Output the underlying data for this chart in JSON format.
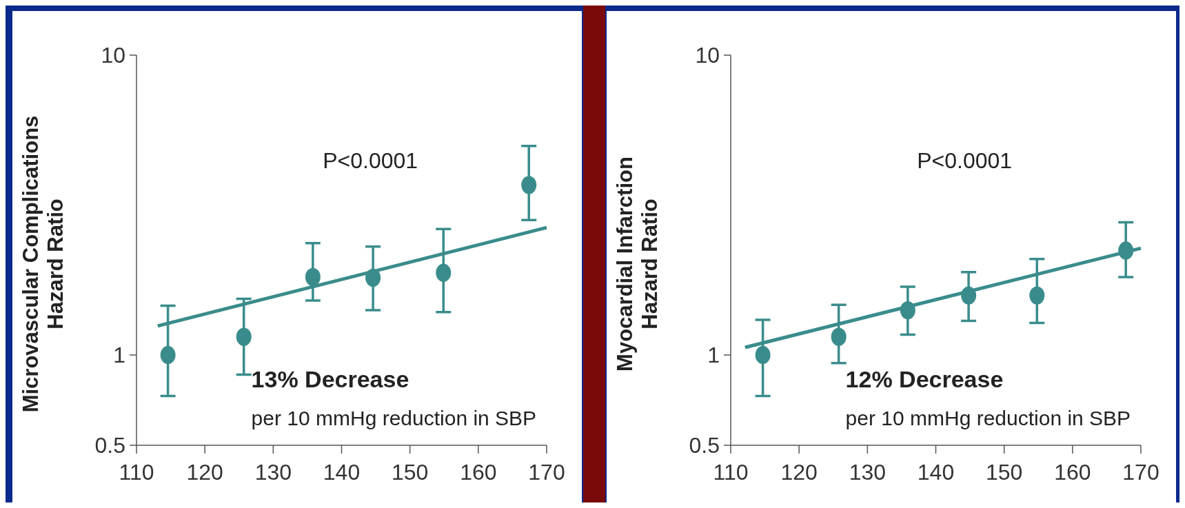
{
  "chart_data": [
    {
      "type": "scatter",
      "ylabel": "Microvascular Complications\nHazard Ratio",
      "xlim": [
        110,
        170
      ],
      "xticks": [
        110,
        120,
        130,
        140,
        150,
        160,
        170
      ],
      "ylim": [
        0.5,
        10
      ],
      "yticks": [
        0.5,
        1,
        10
      ],
      "log": "y",
      "grid": false,
      "marker": "circle",
      "annotations": [
        "P<0.0001",
        "13% Decrease",
        "per 10 mmHg reduction in SBP"
      ],
      "series": [
        {
          "color": "#3a8c8c",
          "x": [
            114.6,
            125.7,
            135.8,
            144.6,
            154.9,
            167.4
          ],
          "values": [
            1.0,
            1.15,
            1.82,
            1.81,
            1.88,
            3.69
          ],
          "errors": [
            [
              0.73,
              1.46
            ],
            [
              0.86,
              1.54
            ],
            [
              1.52,
              2.36
            ],
            [
              1.41,
              2.3
            ],
            [
              1.39,
              2.63
            ],
            [
              2.82,
              4.98
            ]
          ]
        },
        {
          "type": "line",
          "color": "#3a8c8c",
          "x": [
            113.1,
            170
          ],
          "values": [
            1.25,
            2.66
          ],
          "line_style": "solid",
          "marker": "none"
        }
      ]
    },
    {
      "type": "scatter",
      "ylabel": "Myocardial Infarction\nHazard Ratio",
      "xlim": [
        110,
        170
      ],
      "xticks": [
        110,
        120,
        130,
        140,
        150,
        160,
        170
      ],
      "ylim": [
        0.5,
        10
      ],
      "yticks": [
        0.5,
        1,
        10
      ],
      "log": "y",
      "grid": false,
      "marker": "circle",
      "annotations": [
        "P<0.0001",
        "12% Decrease",
        "per 10 mmHg reduction in SBP"
      ],
      "series": [
        {
          "color": "#3a8c8c",
          "x": [
            114.7,
            125.8,
            135.9,
            144.8,
            154.8,
            167.8
          ],
          "values": [
            1.0,
            1.15,
            1.41,
            1.58,
            1.58,
            2.23
          ],
          "errors": [
            [
              0.73,
              1.31
            ],
            [
              0.94,
              1.47
            ],
            [
              1.17,
              1.69
            ],
            [
              1.3,
              1.89
            ],
            [
              1.28,
              2.09
            ],
            [
              1.82,
              2.77
            ]
          ]
        },
        {
          "type": "line",
          "color": "#3a8c8c",
          "x": [
            112.1,
            170
          ],
          "values": [
            1.06,
            2.27
          ],
          "line_style": "solid",
          "marker": "none"
        }
      ]
    }
  ]
}
